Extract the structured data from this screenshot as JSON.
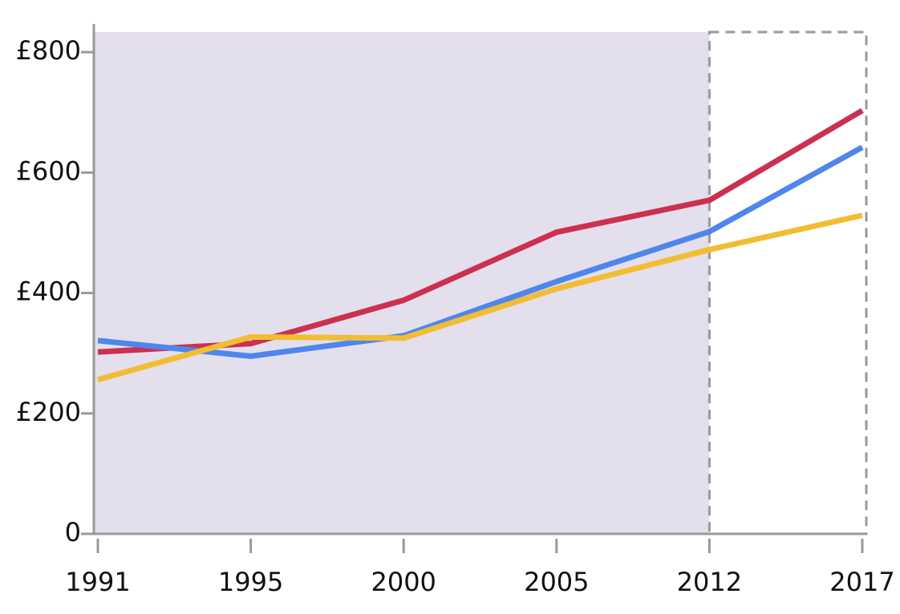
{
  "chart_data": {
    "type": "line",
    "categories": [
      "1991",
      "1995",
      "2000",
      "2005",
      "2012",
      "2017"
    ],
    "series": [
      {
        "color": "#cc3050",
        "values": [
          302,
          316,
          388,
          501,
          554,
          703
        ]
      },
      {
        "color": "#4f86ec",
        "values": [
          321,
          295,
          329,
          419,
          502,
          642
        ]
      },
      {
        "color": "#f2bd33",
        "values": [
          256,
          327,
          325,
          407,
          472,
          529
        ]
      }
    ],
    "ylim": [
      0,
      840
    ],
    "yticks": [
      0,
      {
        "value": 200,
        "label": "£200"
      },
      {
        "value": 400,
        "label": "£400"
      },
      {
        "value": 600,
        "label": "£600"
      },
      {
        "value": 800,
        "label": "£800"
      }
    ]
  }
}
